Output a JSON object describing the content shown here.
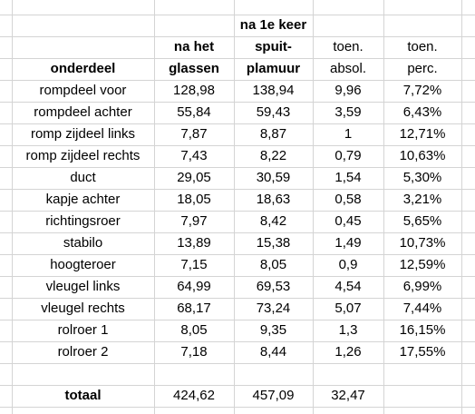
{
  "header": {
    "group_title": "na 1e keer",
    "col_part": "onderdeel",
    "col_glass_1": "na het",
    "col_glass_2": "glassen",
    "col_spray_1": "spuit-",
    "col_spray_2": "plamuur",
    "col_abs_1": "toen.",
    "col_abs_2": "absol.",
    "col_perc_1": "toen.",
    "col_perc_2": "perc."
  },
  "rows": [
    {
      "part": "rompdeel voor",
      "glassen": "128,98",
      "plamuur": "138,94",
      "abs": "9,96",
      "perc": "7,72%"
    },
    {
      "part": "rompdeel achter",
      "glassen": "55,84",
      "plamuur": "59,43",
      "abs": "3,59",
      "perc": "6,43%"
    },
    {
      "part": "romp zijdeel links",
      "glassen": "7,87",
      "plamuur": "8,87",
      "abs": "1",
      "perc": "12,71%"
    },
    {
      "part": "romp zijdeel rechts",
      "glassen": "7,43",
      "plamuur": "8,22",
      "abs": "0,79",
      "perc": "10,63%"
    },
    {
      "part": "duct",
      "glassen": "29,05",
      "plamuur": "30,59",
      "abs": "1,54",
      "perc": "5,30%"
    },
    {
      "part": "kapje achter",
      "glassen": "18,05",
      "plamuur": "18,63",
      "abs": "0,58",
      "perc": "3,21%"
    },
    {
      "part": "richtingsroer",
      "glassen": "7,97",
      "plamuur": "8,42",
      "abs": "0,45",
      "perc": "5,65%"
    },
    {
      "part": "stabilo",
      "glassen": "13,89",
      "plamuur": "15,38",
      "abs": "1,49",
      "perc": "10,73%"
    },
    {
      "part": "hoogteroer",
      "glassen": "7,15",
      "plamuur": "8,05",
      "abs": "0,9",
      "perc": "12,59%"
    },
    {
      "part": "vleugel links",
      "glassen": "64,99",
      "plamuur": "69,53",
      "abs": "4,54",
      "perc": "6,99%"
    },
    {
      "part": "vleugel rechts",
      "glassen": "68,17",
      "plamuur": "73,24",
      "abs": "5,07",
      "perc": "7,44%"
    },
    {
      "part": "rolroer 1",
      "glassen": "8,05",
      "plamuur": "9,35",
      "abs": "1,3",
      "perc": "16,15%"
    },
    {
      "part": "rolroer 2",
      "glassen": "7,18",
      "plamuur": "8,44",
      "abs": "1,26",
      "perc": "17,55%"
    }
  ],
  "total": {
    "label": "totaal",
    "glassen": "424,62",
    "plamuur": "457,09",
    "abs": "32,47"
  }
}
